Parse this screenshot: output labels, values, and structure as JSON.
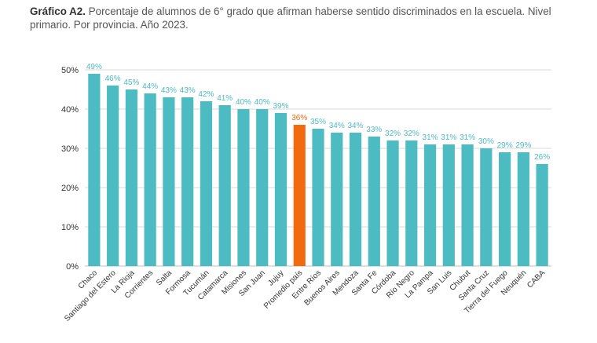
{
  "caption": {
    "label": "Gráfico A2.",
    "text": "Porcentaje de alumnos de 6° grado que afirman haberse sentido discriminados en la escuela. Nivel primario. Por provincia. Año 2023."
  },
  "colors": {
    "bar": "#4dbbc2",
    "highlight": "#f26a10",
    "grid": "#d9d9d9",
    "axis_text": "#333333"
  },
  "chart_data": {
    "type": "bar",
    "categories": [
      "Chaco",
      "Santiago del Estero",
      "La Rioja",
      "Corrientes",
      "Salta",
      "Formosa",
      "Tucumán",
      "Catamarca",
      "Misiones",
      "San Juan",
      "Jujuy",
      "Promedio país",
      "Entre Ríos",
      "Buenos Aires",
      "Mendoza",
      "Santa Fe",
      "Córdoba",
      "Río Negro",
      "La Pampa",
      "San Luis",
      "Chubut",
      "Santa Cruz",
      "Tierra del Fuego",
      "Neuquén",
      "CABA"
    ],
    "values": [
      49,
      46,
      45,
      44,
      43,
      43,
      42,
      41,
      40,
      40,
      39,
      36,
      35,
      34,
      34,
      33,
      32,
      32,
      31,
      31,
      31,
      30,
      29,
      29,
      26
    ],
    "data_labels": [
      "49%",
      "46%",
      "45%",
      "44%",
      "43%",
      "43%",
      "42%",
      "41%",
      "40%",
      "40%",
      "39%",
      "36%",
      "35%",
      "34%",
      "34%",
      "33%",
      "32%",
      "32%",
      "31%",
      "31%",
      "31%",
      "30%",
      "29%",
      "29%",
      "26%"
    ],
    "highlight_category": "Promedio país",
    "ylim": [
      0,
      50
    ],
    "yticks": [
      0,
      10,
      20,
      30,
      40,
      50
    ],
    "ytick_labels": [
      "0%",
      "10%",
      "20%",
      "30%",
      "40%",
      "50%"
    ],
    "grid": true,
    "title": "",
    "xlabel": "",
    "ylabel": ""
  }
}
